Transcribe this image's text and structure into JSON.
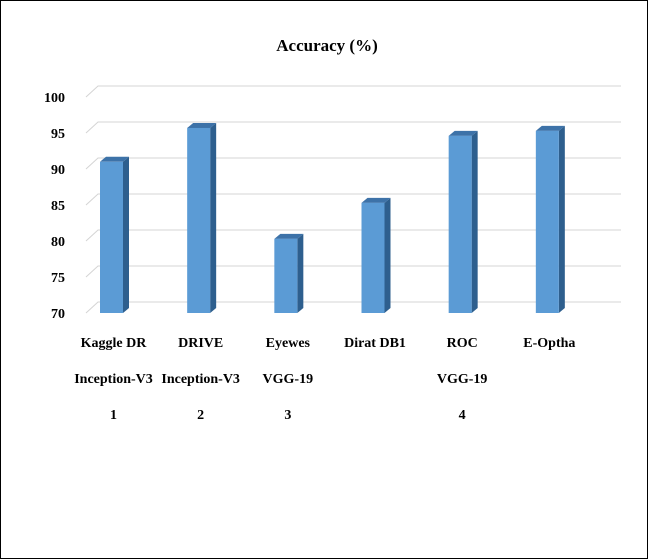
{
  "chart_data": {
    "type": "bar",
    "title": "Accuracy    (%)",
    "xlabel": "",
    "ylabel": "",
    "ylim": [
      70,
      100
    ],
    "yticks": [
      70,
      75,
      80,
      85,
      90,
      95,
      100
    ],
    "grid": true,
    "legend": "none",
    "bar_color": "#5b9bd5",
    "bar_side_color": "#2e5f8e",
    "bar_top_color": "#3d72a8",
    "categories": [
      {
        "level1": "Kaggle DR",
        "level2": "Inception-V3",
        "level3": "1"
      },
      {
        "level1": "DRIVE",
        "level2": "Inception-V3",
        "level3": "2"
      },
      {
        "level1": "Eyewes",
        "level2": "VGG-19",
        "level3": "3"
      },
      {
        "level1": "Dirat DB1",
        "level2": "",
        "level3": ""
      },
      {
        "level1": "ROC",
        "level2": "VGG-19",
        "level3": "4"
      },
      {
        "level1": "E-Optha",
        "level2": "",
        "level3": ""
      }
    ],
    "values": [
      91.0,
      95.7,
      80.3,
      85.3,
      94.6,
      95.3
    ]
  }
}
